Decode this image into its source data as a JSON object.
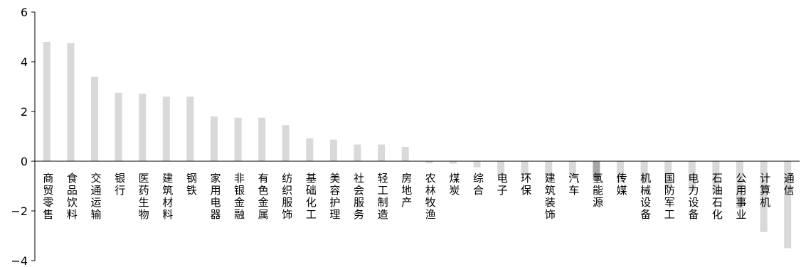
{
  "chart_data": {
    "type": "bar",
    "title": "",
    "xlabel": "",
    "ylabel": "",
    "ylim": [
      -4,
      6
    ],
    "yticks": [
      "6",
      "4",
      "2",
      "0",
      "−2",
      "−4"
    ],
    "grid": false,
    "legend": "none",
    "bar_color": "#d9d9d9",
    "highlight_color": "#a6a6a6",
    "highlight_category": "氢能源",
    "categories": [
      "商贸零售",
      "食品饮料",
      "交通运输",
      "银行",
      "医药生物",
      "建筑材料",
      "钢铁",
      "家用电器",
      "非银金融",
      "有色金属",
      "纺织服饰",
      "基础化工",
      "美容护理",
      "社会服务",
      "轻工制造",
      "房地产",
      "农林牧渔",
      "煤炭",
      "综合",
      "电子",
      "环保",
      "建筑装饰",
      "汽车",
      "氢能源",
      "传媒",
      "机械设备",
      "国防军工",
      "电力设备",
      "石油石化",
      "公用事业",
      "计算机",
      "通信"
    ],
    "values": [
      4.8,
      4.75,
      3.4,
      2.75,
      2.72,
      2.6,
      2.6,
      1.8,
      1.75,
      1.75,
      1.45,
      0.92,
      0.87,
      0.67,
      0.67,
      0.57,
      -0.08,
      -0.1,
      -0.25,
      -0.55,
      -0.58,
      -0.6,
      -0.7,
      -0.75,
      -0.85,
      -0.9,
      -1.1,
      -1.2,
      -1.3,
      -1.9,
      -2.85,
      -3.5
    ]
  }
}
